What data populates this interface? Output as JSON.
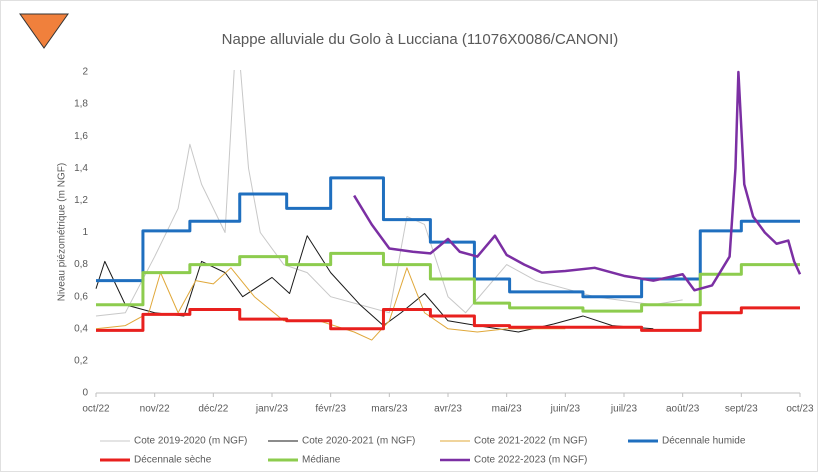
{
  "chart_data": {
    "type": "line",
    "title": "Nappe alluviale du Golo à Lucciana (11076X0086/CANONI)",
    "y_label": "Niveau piézométrique (m NGF)",
    "xlim": [
      0,
      12
    ],
    "xticks": [
      {
        "value": 0,
        "label": "oct/22"
      },
      {
        "value": 1,
        "label": "nov/22"
      },
      {
        "value": 2,
        "label": "déc/22"
      },
      {
        "value": 3,
        "label": "janv/23"
      },
      {
        "value": 4,
        "label": "févr/23"
      },
      {
        "value": 5,
        "label": "mars/23"
      },
      {
        "value": 6,
        "label": "avr/23"
      },
      {
        "value": 7,
        "label": "mai/23"
      },
      {
        "value": 8,
        "label": "juin/23"
      },
      {
        "value": 9,
        "label": "juil/23"
      },
      {
        "value": 10,
        "label": "août/23"
      },
      {
        "value": 11,
        "label": "sept/23"
      },
      {
        "value": 12,
        "label": "oct/23"
      }
    ],
    "ylim": [
      0,
      2
    ],
    "yticks": [
      0,
      {
        "value": 0.2,
        "label": "0,2"
      },
      {
        "value": 0.4,
        "label": "0,4"
      },
      {
        "value": 0.6,
        "label": "0,6"
      },
      {
        "value": 0.8,
        "label": "0,8"
      },
      1,
      {
        "value": 1.2,
        "label": "1,2"
      },
      {
        "value": 1.4,
        "label": "1,4"
      },
      {
        "value": 1.6,
        "label": "1,6"
      },
      {
        "value": 1.8,
        "label": "1,8"
      },
      2
    ],
    "series": [
      {
        "name": "Cote 2019-2020 (m NGF)",
        "color": "#c8c8c8",
        "width": 1,
        "x": [
          0,
          0.5,
          1,
          1.4,
          1.6,
          1.8,
          2.2,
          2.4,
          2.6,
          2.8,
          3.2,
          3.6,
          4.0,
          4.5,
          5.0,
          5.3,
          5.6,
          6.0,
          6.3,
          7.0,
          7.5,
          8.5,
          9.5,
          10
        ],
        "values": [
          0.48,
          0.5,
          0.85,
          1.15,
          1.55,
          1.3,
          1.0,
          2.3,
          1.4,
          1.0,
          0.8,
          0.75,
          0.6,
          0.55,
          0.5,
          1.1,
          1.05,
          0.6,
          0.5,
          0.8,
          0.7,
          0.6,
          0.55,
          0.58
        ]
      },
      {
        "name": "Cote 2020-2021 (m NGF)",
        "color": "#1a1a1a",
        "width": 1,
        "x": [
          0,
          0.15,
          0.5,
          1,
          1.5,
          1.8,
          2.2,
          2.5,
          3,
          3.3,
          3.6,
          4.0,
          4.5,
          4.9,
          5.2,
          5.6,
          6,
          6.5,
          7.2,
          7.8,
          8.3,
          8.8,
          9.5
        ],
        "values": [
          0.65,
          0.82,
          0.55,
          0.5,
          0.48,
          0.82,
          0.75,
          0.6,
          0.72,
          0.62,
          0.98,
          0.75,
          0.55,
          0.42,
          0.5,
          0.62,
          0.45,
          0.42,
          0.38,
          0.43,
          0.48,
          0.42,
          0.4
        ]
      },
      {
        "name": "Cote 2021-2022 (m NGF)",
        "color": "#e0a83a",
        "width": 1,
        "x": [
          0,
          0.5,
          0.9,
          1.1,
          1.4,
          1.7,
          2,
          2.3,
          2.7,
          3.2,
          3.8,
          4.4,
          4.7,
          5.0,
          5.3,
          5.6,
          6.0,
          6.5,
          7.0,
          8
        ],
        "values": [
          0.4,
          0.42,
          0.5,
          0.75,
          0.5,
          0.7,
          0.68,
          0.78,
          0.6,
          0.45,
          0.45,
          0.38,
          0.33,
          0.45,
          0.78,
          0.5,
          0.4,
          0.38,
          0.4,
          0.4
        ]
      },
      {
        "name": "Décennale humide",
        "color": "#1f6fbf",
        "width": 3,
        "x": [
          0,
          0.8,
          0.8,
          1.6,
          1.6,
          2.45,
          2.45,
          3.25,
          3.25,
          4.0,
          4.0,
          4.9,
          4.9,
          5.7,
          5.7,
          6.45,
          6.45,
          7.05,
          7.05,
          8.3,
          8.3,
          9.3,
          9.3,
          10.3,
          10.3,
          11.0,
          11.0,
          12
        ],
        "values": [
          0.7,
          0.7,
          1.01,
          1.01,
          1.07,
          1.07,
          1.24,
          1.24,
          1.15,
          1.15,
          1.34,
          1.34,
          1.08,
          1.08,
          0.94,
          0.94,
          0.71,
          0.71,
          0.63,
          0.63,
          0.6,
          0.6,
          0.71,
          0.71,
          1.01,
          1.01,
          1.07,
          1.07
        ]
      },
      {
        "name": "Décennale sèche",
        "color": "#e8201e",
        "width": 3,
        "x": [
          0,
          0.8,
          0.8,
          1.6,
          1.6,
          2.45,
          2.45,
          3.25,
          3.25,
          4.0,
          4.0,
          4.9,
          4.9,
          5.7,
          5.7,
          6.45,
          6.45,
          7.05,
          7.05,
          9.3,
          9.3,
          10.3,
          10.3,
          11.0,
          11.0,
          12
        ],
        "values": [
          0.39,
          0.39,
          0.49,
          0.49,
          0.52,
          0.52,
          0.46,
          0.46,
          0.45,
          0.45,
          0.4,
          0.4,
          0.52,
          0.52,
          0.48,
          0.48,
          0.42,
          0.42,
          0.41,
          0.41,
          0.39,
          0.39,
          0.5,
          0.5,
          0.53,
          0.53
        ]
      },
      {
        "name": "Médiane",
        "color": "#8dcc4e",
        "width": 3,
        "x": [
          0,
          0.8,
          0.8,
          1.6,
          1.6,
          2.45,
          2.45,
          3.25,
          3.25,
          4.0,
          4.0,
          4.9,
          4.9,
          5.7,
          5.7,
          6.45,
          6.45,
          7.05,
          7.05,
          8.3,
          8.3,
          9.3,
          9.3,
          10.3,
          10.3,
          11.0,
          11.0,
          12
        ],
        "values": [
          0.55,
          0.55,
          0.75,
          0.75,
          0.8,
          0.8,
          0.85,
          0.85,
          0.8,
          0.8,
          0.87,
          0.87,
          0.8,
          0.8,
          0.71,
          0.71,
          0.56,
          0.56,
          0.53,
          0.53,
          0.51,
          0.51,
          0.55,
          0.55,
          0.74,
          0.74,
          0.8,
          0.8
        ]
      },
      {
        "name": "Cote 2022-2023 (m NGF)",
        "color": "#7b2fa3",
        "width": 2.5,
        "x": [
          4.4,
          4.7,
          5.0,
          5.4,
          5.7,
          6.0,
          6.2,
          6.5,
          6.8,
          7.0,
          7.3,
          7.6,
          8.0,
          8.5,
          9.0,
          9.5,
          10.0,
          10.2,
          10.5,
          10.8,
          10.9,
          10.95,
          11.05,
          11.2,
          11.4,
          11.6,
          11.8,
          11.9,
          12
        ],
        "values": [
          1.23,
          1.05,
          0.9,
          0.88,
          0.87,
          0.96,
          0.88,
          0.85,
          0.98,
          0.86,
          0.8,
          0.75,
          0.76,
          0.78,
          0.73,
          0.7,
          0.74,
          0.64,
          0.67,
          0.85,
          1.4,
          2.0,
          1.3,
          1.1,
          1.0,
          0.93,
          0.95,
          0.82,
          0.74
        ]
      }
    ]
  }
}
